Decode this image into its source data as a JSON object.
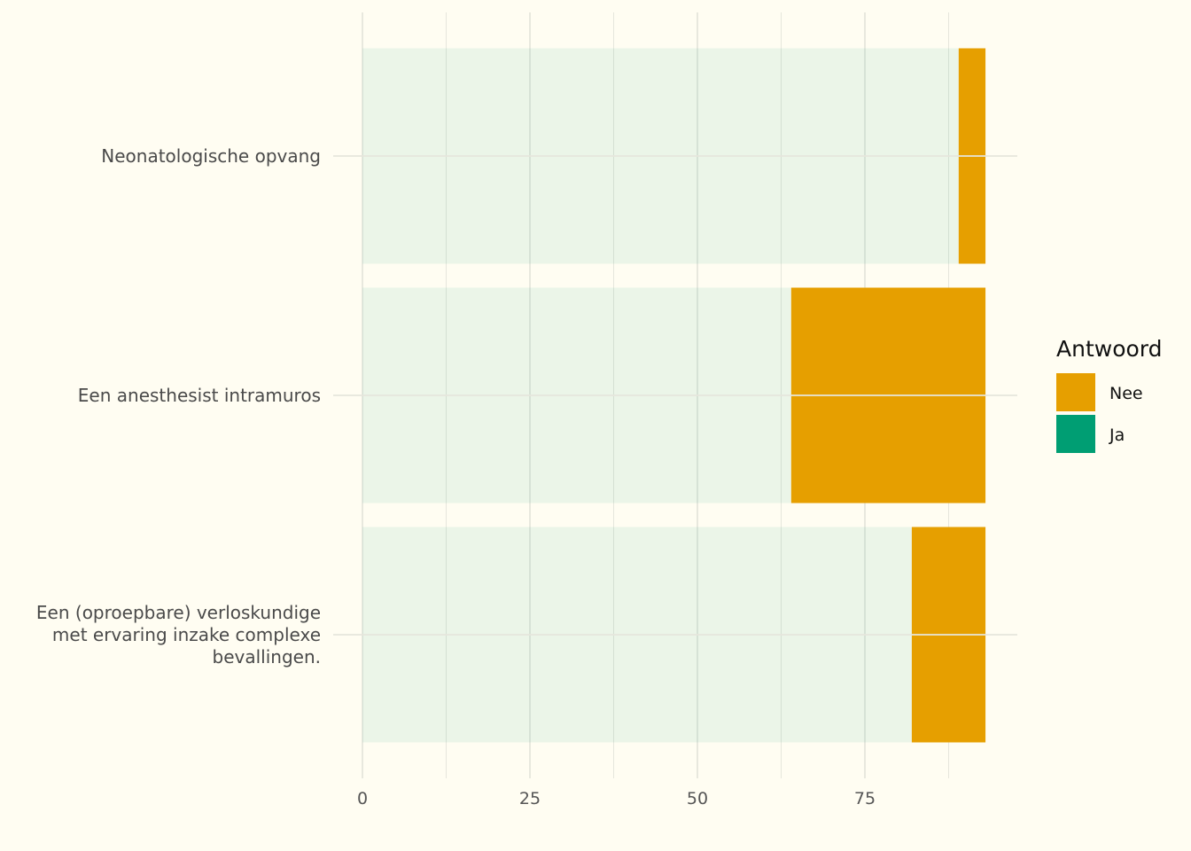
{
  "chart_data": {
    "type": "bar",
    "orientation": "horizontal",
    "stacked": true,
    "categories": [
      "Neonatologische opvang",
      "Een anesthesist intramuros",
      "Een (oproepbare) verloskundige met ervaring inzake complexe bevallingen."
    ],
    "category_lines": [
      [
        "Neonatologische opvang"
      ],
      [
        "Een anesthesist intramuros"
      ],
      [
        "Een (oproepbare) verloskundige",
        "met ervaring inzake complexe",
        "bevallingen."
      ]
    ],
    "series": [
      {
        "name": "Ja",
        "values": [
          89,
          64,
          82
        ],
        "color": "#009E73",
        "opacity": 0.08
      },
      {
        "name": "Nee",
        "values": [
          4,
          29,
          11
        ],
        "color": "#E69F00",
        "opacity": 1.0
      }
    ],
    "xlim": [
      0,
      98
    ],
    "x_ticks": [
      0,
      25,
      50,
      75
    ],
    "x_minor_ticks": [
      12.5,
      37.5,
      62.5,
      87.5
    ],
    "grid": true,
    "legend": {
      "title": "Antwoord",
      "position": "right",
      "items": [
        {
          "label": "Nee",
          "color": "#E69F00"
        },
        {
          "label": "Ja",
          "color": "#009E73"
        }
      ]
    },
    "colors": {
      "background": "#FFFDF2",
      "grid": "#E6E6DC"
    }
  }
}
